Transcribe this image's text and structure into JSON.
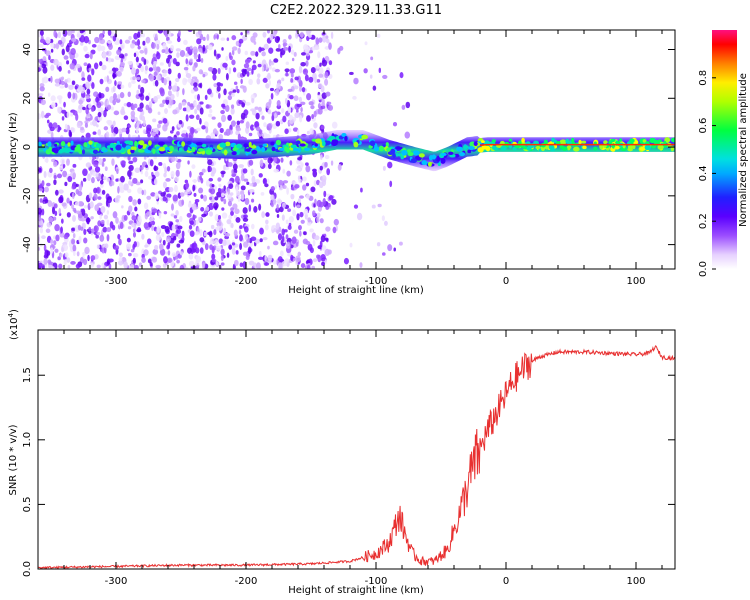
{
  "title": "C2E2.2022.329.11.33.G11",
  "colors": {
    "snr_line": "#e83030",
    "axis": "#000000",
    "background": "#ffffff"
  },
  "chart_data": [
    {
      "type": "heatmap",
      "title": "C2E2.2022.329.11.33.G11",
      "xlabel": "Height of straight line (km)",
      "ylabel": "Frequency (Hz)",
      "xlim": [
        -360,
        130
      ],
      "ylim": [
        -50,
        48
      ],
      "xticks": [
        -300,
        -200,
        -100,
        0,
        100
      ],
      "xtick_labels": [
        "-300",
        "-200",
        "-100",
        "0",
        "100"
      ],
      "yticks": [
        -40,
        -20,
        0,
        20,
        40
      ],
      "ytick_labels": [
        "-40",
        "-20",
        "0",
        "20",
        "40"
      ],
      "noise_region_x": [
        -360,
        -135
      ],
      "ridge": {
        "x": [
          -360,
          -300,
          -250,
          -200,
          -150,
          -130,
          -110,
          -90,
          -70,
          -55,
          -45,
          -30,
          -15,
          0,
          30,
          60,
          90,
          130
        ],
        "freq": [
          0,
          0,
          0,
          -1,
          1,
          3,
          3,
          -1,
          -4,
          -6,
          -4,
          0,
          1,
          1,
          1,
          1,
          1,
          1
        ]
      },
      "colorbar": {
        "label": "Normalized spectral amplitude",
        "range": [
          0,
          1
        ],
        "ticks": [
          0,
          0.2,
          0.4,
          0.6,
          0.8
        ],
        "tick_labels": [
          "0.0",
          "0.2",
          "0.4",
          "0.6",
          "0.8"
        ]
      }
    },
    {
      "type": "line",
      "title": "",
      "xlabel": "Height of straight line (km)",
      "ylabel": "SNR (10 * v/v)",
      "multiplier_label": "(x10",
      "multiplier_exponent": "4",
      "xlim": [
        -360,
        130
      ],
      "ylim": [
        0,
        1.85
      ],
      "xticks": [
        -300,
        -200,
        -100,
        0,
        100
      ],
      "xtick_labels": [
        "-300",
        "-200",
        "-100",
        "0",
        "100"
      ],
      "yticks": [
        0,
        0.5,
        1.0,
        1.5
      ],
      "ytick_labels": [
        "0.0",
        "0.5",
        "1.0",
        "1.5"
      ],
      "series": [
        {
          "name": "SNR",
          "x": [
            -360,
            -300,
            -250,
            -200,
            -150,
            -120,
            -100,
            -90,
            -82,
            -78,
            -72,
            -65,
            -55,
            -45,
            -35,
            -25,
            -15,
            -5,
            5,
            15,
            25,
            40,
            60,
            80,
            100,
            110,
            115,
            120,
            130
          ],
          "y": [
            0.01,
            0.02,
            0.03,
            0.03,
            0.04,
            0.06,
            0.12,
            0.2,
            0.42,
            0.28,
            0.12,
            0.06,
            0.06,
            0.15,
            0.45,
            0.8,
            1.05,
            1.25,
            1.45,
            1.57,
            1.64,
            1.68,
            1.68,
            1.67,
            1.66,
            1.67,
            1.72,
            1.64,
            1.63
          ]
        }
      ]
    }
  ]
}
